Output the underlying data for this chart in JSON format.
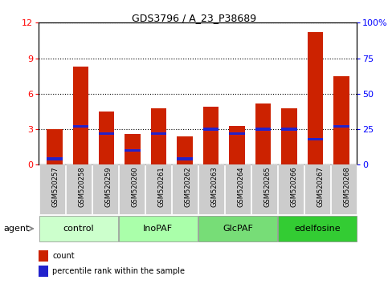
{
  "title": "GDS3796 / A_23_P38689",
  "categories": [
    "GSM520257",
    "GSM520258",
    "GSM520259",
    "GSM520260",
    "GSM520261",
    "GSM520262",
    "GSM520263",
    "GSM520264",
    "GSM520265",
    "GSM520266",
    "GSM520267",
    "GSM520268"
  ],
  "count_values": [
    3.0,
    8.3,
    4.5,
    2.6,
    4.8,
    2.4,
    4.9,
    3.3,
    5.2,
    4.8,
    11.2,
    7.5
  ],
  "percentile_values": [
    0.04,
    0.27,
    0.22,
    0.1,
    0.22,
    0.04,
    0.25,
    0.22,
    0.25,
    0.25,
    0.18,
    0.27
  ],
  "groups": [
    {
      "label": "control",
      "start": 0,
      "end": 3,
      "color": "#ccffcc"
    },
    {
      "label": "InoPAF",
      "start": 3,
      "end": 6,
      "color": "#aaffaa"
    },
    {
      "label": "GlcPAF",
      "start": 6,
      "end": 9,
      "color": "#77dd77"
    },
    {
      "label": "edelfosine",
      "start": 9,
      "end": 12,
      "color": "#33cc33"
    }
  ],
  "bar_color": "#cc2200",
  "percentile_color": "#2222cc",
  "ylim_left": [
    0,
    12
  ],
  "ylim_right": [
    0,
    100
  ],
  "yticks_left": [
    0,
    3,
    6,
    9,
    12
  ],
  "yticks_right": [
    0,
    25,
    50,
    75,
    100
  ],
  "yticklabels_right": [
    "0",
    "25",
    "50",
    "75",
    "100%"
  ],
  "bar_width": 0.6,
  "legend_count": "count",
  "legend_percentile": "percentile rank within the sample",
  "agent_label": "agent",
  "background_color": "#ffffff",
  "plot_bg_color": "#ffffff",
  "cat_box_color": "#cccccc"
}
